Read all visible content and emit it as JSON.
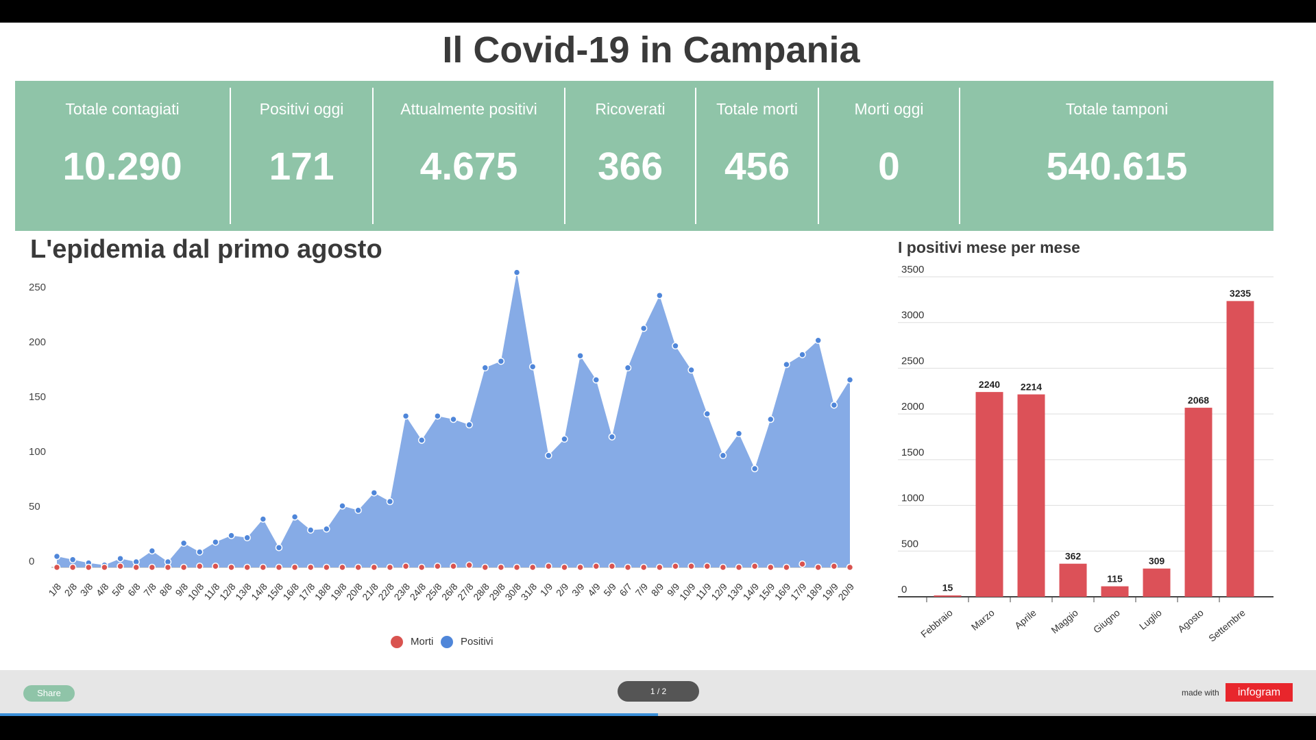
{
  "header": {
    "title": "Il Covid-19 in Campania"
  },
  "stats": [
    {
      "label": "Totale contagiati",
      "value": "10.290"
    },
    {
      "label": "Positivi oggi",
      "value": "171"
    },
    {
      "label": "Attualmente positivi",
      "value": "4.675"
    },
    {
      "label": "Ricoverati",
      "value": "366"
    },
    {
      "label": "Totale morti",
      "value": "456"
    },
    {
      "label": "Morti oggi",
      "value": "0"
    },
    {
      "label": "Totale tamponi",
      "value": "540.615"
    }
  ],
  "chart_data": [
    {
      "type": "area",
      "title": "L'epidemia dal primo agosto",
      "categories": [
        "1/8",
        "2/8",
        "3/8",
        "4/8",
        "5/8",
        "6/8",
        "7/8",
        "8/8",
        "9/8",
        "10/8",
        "11/8",
        "12/8",
        "13/8",
        "14/8",
        "15/8",
        "16/8",
        "17/8",
        "18/8",
        "19/8",
        "20/8",
        "21/8",
        "22/8",
        "23/8",
        "24/8",
        "25/8",
        "26/8",
        "27/8",
        "28/8",
        "29/8",
        "30/8",
        "31/8",
        "1/9",
        "2/9",
        "3/9",
        "4/9",
        "5/9",
        "6/7",
        "7/9",
        "8/9",
        "9/9",
        "10/9",
        "11/9",
        "12/9",
        "13/9",
        "14/9",
        "15/9",
        "16/9",
        "17/9",
        "18/9",
        "19/9",
        "20/9"
      ],
      "series": [
        {
          "name": "Morti",
          "color": "#d9534f",
          "values": [
            0,
            0,
            0,
            0,
            1,
            0,
            0,
            0,
            0,
            1,
            1,
            0,
            0,
            0,
            0,
            0,
            0,
            0,
            0,
            0,
            0,
            0,
            1,
            0,
            1,
            1,
            2,
            0,
            0,
            0,
            0,
            1,
            0,
            0,
            1,
            1,
            0,
            0,
            0,
            1,
            1,
            1,
            0,
            0,
            1,
            0,
            0,
            3,
            0,
            1,
            0
          ]
        },
        {
          "name": "Positivi",
          "color": "#4f86d9",
          "values": [
            10,
            7,
            4,
            2,
            8,
            5,
            15,
            5,
            22,
            14,
            23,
            29,
            27,
            44,
            18,
            46,
            34,
            35,
            56,
            52,
            68,
            60,
            138,
            116,
            138,
            135,
            130,
            182,
            188,
            269,
            183,
            102,
            117,
            193,
            171,
            119,
            182,
            218,
            248,
            202,
            180,
            140,
            102,
            122,
            90,
            135,
            185,
            194,
            207,
            148,
            171
          ]
        }
      ],
      "ylim": [
        0,
        280
      ],
      "yticks": [
        0,
        50,
        100,
        150,
        200,
        250
      ],
      "legend": "bottom"
    },
    {
      "type": "bar",
      "title": "I positivi mese per mese",
      "categories": [
        "Febbraio",
        "Marzo",
        "Aprile",
        "Maggio",
        "Giugno",
        "Luglio",
        "Agosto",
        "Settembre"
      ],
      "values": [
        15,
        2240,
        2214,
        362,
        115,
        309,
        2068,
        3235
      ],
      "color": "#dc5158",
      "ylim": [
        0,
        3500
      ],
      "yticks": [
        0,
        500,
        1000,
        1500,
        2000,
        2500,
        3000,
        3500
      ],
      "grid": true
    }
  ],
  "footer": {
    "share": "Share",
    "pager": "1 / 2",
    "made_with": "made with",
    "brand": "infogram"
  }
}
